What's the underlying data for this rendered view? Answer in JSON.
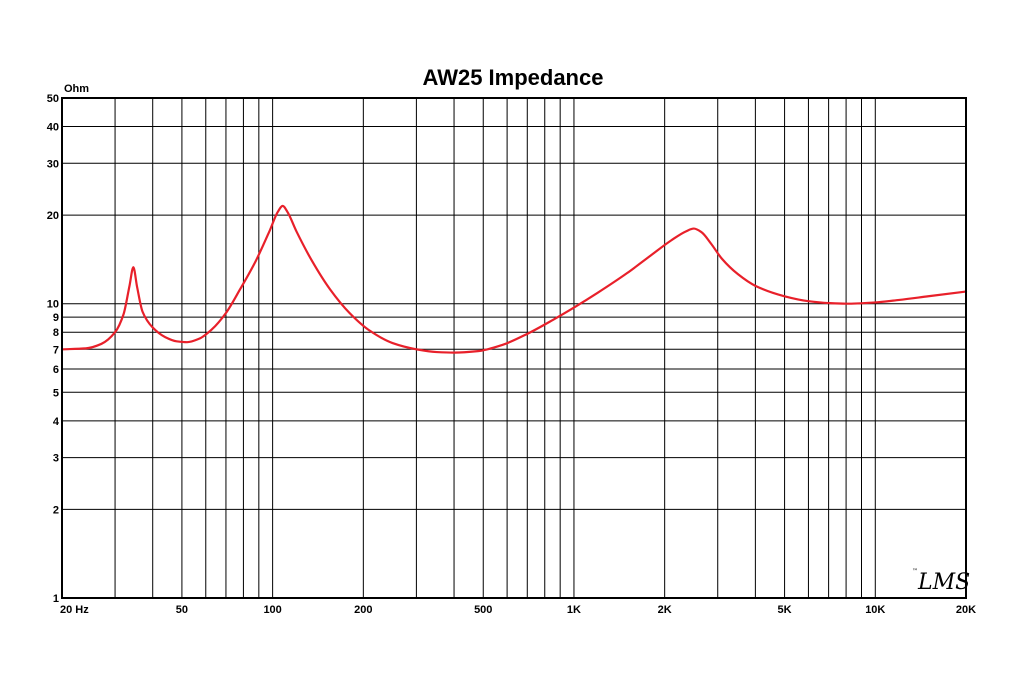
{
  "chart_data": {
    "type": "line",
    "title": "AW25 Impedance",
    "ylabel": "Ohm",
    "xlabel": "",
    "x_scale": "log",
    "y_scale": "log",
    "xlim": [
      20,
      20000
    ],
    "ylim": [
      1,
      50
    ],
    "grid": true,
    "x_tick_labels": [
      {
        "value": 20,
        "label": "20 Hz"
      },
      {
        "value": 50,
        "label": "50"
      },
      {
        "value": 100,
        "label": "100"
      },
      {
        "value": 200,
        "label": "200"
      },
      {
        "value": 500,
        "label": "500"
      },
      {
        "value": 1000,
        "label": "1K"
      },
      {
        "value": 2000,
        "label": "2K"
      },
      {
        "value": 5000,
        "label": "5K"
      },
      {
        "value": 10000,
        "label": "10K"
      },
      {
        "value": 20000,
        "label": "20K"
      }
    ],
    "y_tick_labels": [
      {
        "value": 1,
        "label": "1"
      },
      {
        "value": 2,
        "label": "2"
      },
      {
        "value": 3,
        "label": "3"
      },
      {
        "value": 4,
        "label": "4"
      },
      {
        "value": 5,
        "label": "5"
      },
      {
        "value": 6,
        "label": "6"
      },
      {
        "value": 7,
        "label": "7"
      },
      {
        "value": 8,
        "label": "8"
      },
      {
        "value": 9,
        "label": "9"
      },
      {
        "value": 10,
        "label": "10"
      },
      {
        "value": 20,
        "label": "20"
      },
      {
        "value": 30,
        "label": "30"
      },
      {
        "value": 40,
        "label": "40"
      },
      {
        "value": 50,
        "label": "50"
      }
    ],
    "series": [
      {
        "color": "#e8202a",
        "points": [
          [
            20,
            7.0
          ],
          [
            24,
            7.05
          ],
          [
            27,
            7.3
          ],
          [
            30,
            8.0
          ],
          [
            32,
            9.2
          ],
          [
            33.5,
            11.5
          ],
          [
            34.5,
            13.3
          ],
          [
            35.5,
            11.4
          ],
          [
            37,
            9.4
          ],
          [
            40,
            8.3
          ],
          [
            44,
            7.7
          ],
          [
            48,
            7.45
          ],
          [
            52,
            7.4
          ],
          [
            57,
            7.6
          ],
          [
            63,
            8.2
          ],
          [
            70,
            9.3
          ],
          [
            78,
            11.2
          ],
          [
            88,
            14.0
          ],
          [
            98,
            17.8
          ],
          [
            104,
            20.5
          ],
          [
            108,
            21.5
          ],
          [
            112,
            20.5
          ],
          [
            120,
            17.6
          ],
          [
            135,
            14.0
          ],
          [
            155,
            11.2
          ],
          [
            180,
            9.3
          ],
          [
            210,
            8.1
          ],
          [
            250,
            7.35
          ],
          [
            300,
            7.0
          ],
          [
            350,
            6.85
          ],
          [
            400,
            6.82
          ],
          [
            480,
            6.9
          ],
          [
            580,
            7.25
          ],
          [
            700,
            7.9
          ],
          [
            850,
            8.8
          ],
          [
            1000,
            9.7
          ],
          [
            1200,
            10.9
          ],
          [
            1500,
            12.7
          ],
          [
            1800,
            14.6
          ],
          [
            2100,
            16.4
          ],
          [
            2350,
            17.6
          ],
          [
            2500,
            18.0
          ],
          [
            2650,
            17.5
          ],
          [
            2850,
            16.0
          ],
          [
            3100,
            14.2
          ],
          [
            3500,
            12.6
          ],
          [
            4000,
            11.5
          ],
          [
            5000,
            10.6
          ],
          [
            6000,
            10.2
          ],
          [
            7000,
            10.05
          ],
          [
            8000,
            10.0
          ],
          [
            10000,
            10.1
          ],
          [
            12000,
            10.3
          ],
          [
            15000,
            10.6
          ],
          [
            20000,
            11.0
          ]
        ]
      }
    ]
  },
  "logo": {
    "text": "LMS",
    "superscript": "™"
  }
}
